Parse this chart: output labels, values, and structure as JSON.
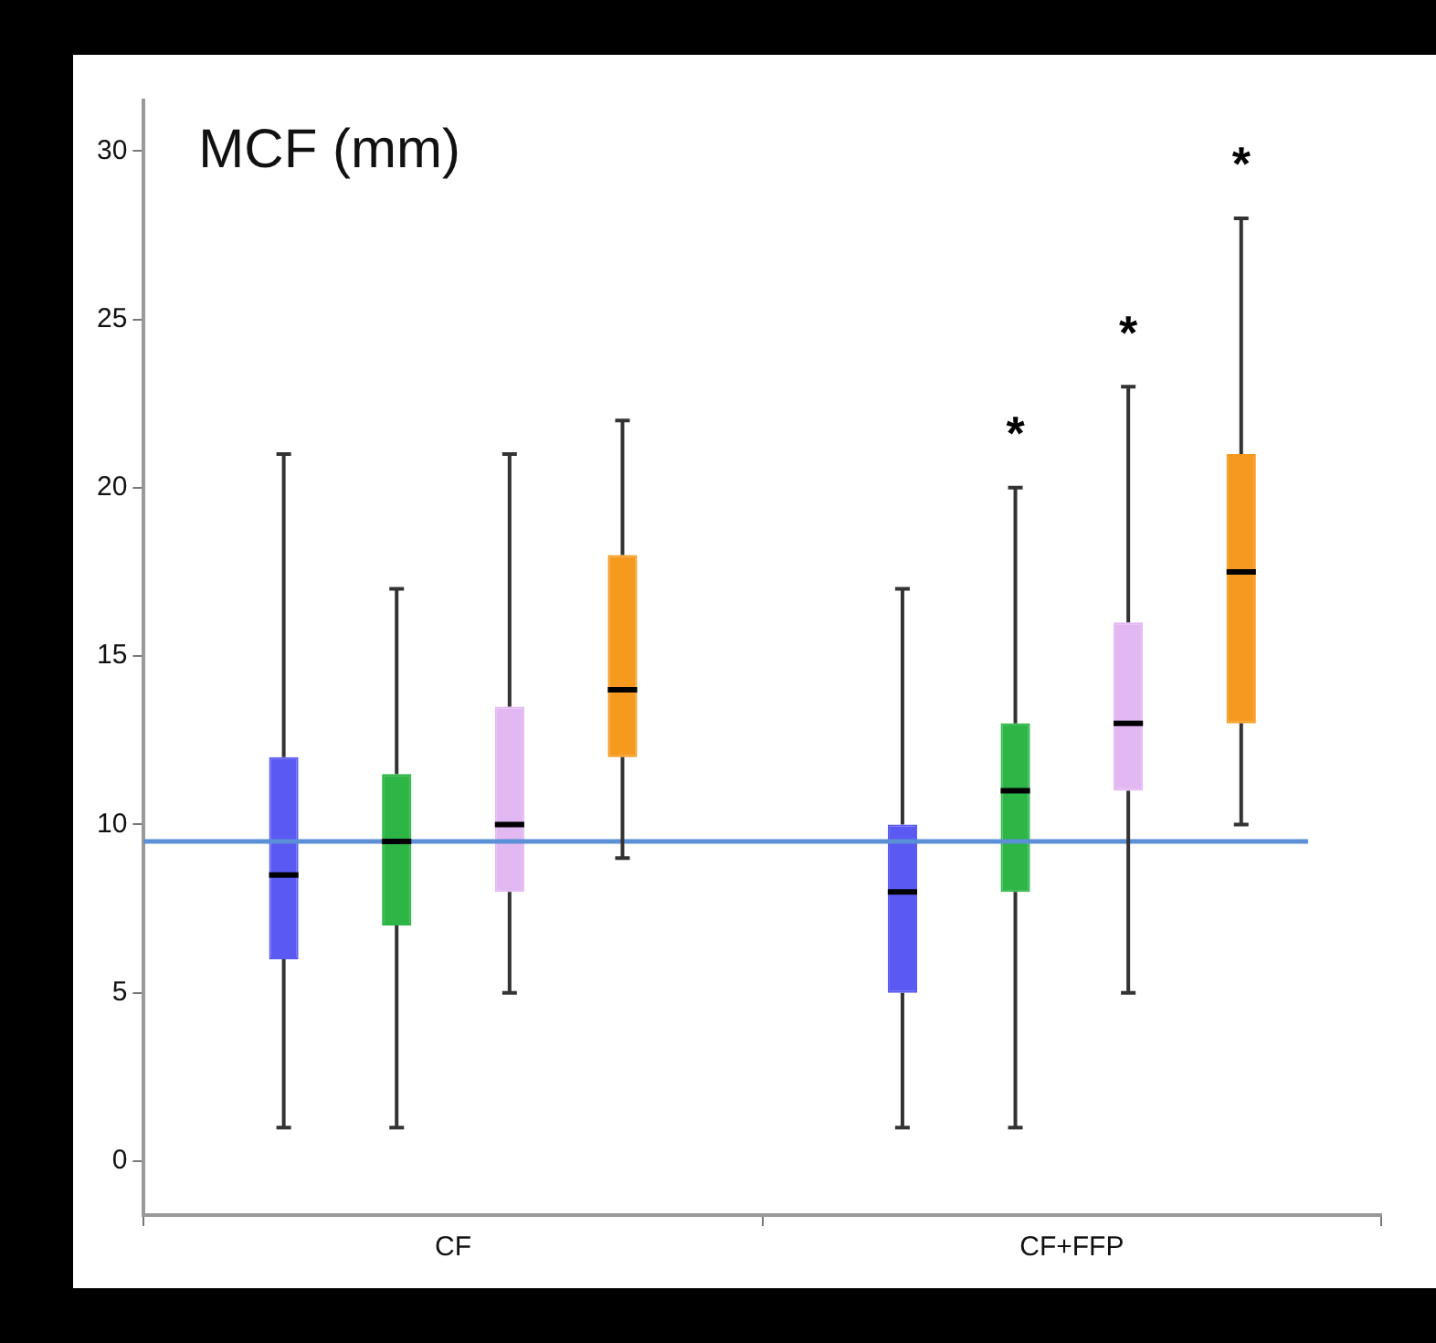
{
  "chart_data": {
    "type": "box",
    "title": "MCF (mm)",
    "categories": [
      "CF",
      "CF+FFP"
    ],
    "series": [
      {
        "color": "#5a5af2",
        "boxes": [
          {
            "low": 1,
            "q1": 6,
            "median": 8.5,
            "q3": 12,
            "high": 21
          },
          {
            "low": 1,
            "q1": 5,
            "median": 8,
            "q3": 10,
            "high": 17
          }
        ]
      },
      {
        "color": "#2db546",
        "boxes": [
          {
            "low": 1,
            "q1": 7,
            "median": 9.5,
            "q3": 11.5,
            "high": 17
          },
          {
            "low": 1,
            "q1": 8,
            "median": 11,
            "q3": 13,
            "high": 20
          }
        ]
      },
      {
        "color": "#e2b8f2",
        "boxes": [
          {
            "low": 5,
            "q1": 8,
            "median": 10,
            "q3": 13.5,
            "high": 21
          },
          {
            "low": 5,
            "q1": 11,
            "median": 13,
            "q3": 16,
            "high": 23
          }
        ]
      },
      {
        "color": "#f59a1e",
        "boxes": [
          {
            "low": 9,
            "q1": 12,
            "median": 14,
            "q3": 18,
            "high": 22
          },
          {
            "low": 10,
            "q1": 13,
            "median": 17.5,
            "q3": 21,
            "high": 28
          }
        ]
      }
    ],
    "ylim": [
      -1.6,
      31.5
    ],
    "yticks": [
      0,
      5,
      10,
      15,
      20,
      25,
      30
    ],
    "grid": false,
    "legend": false,
    "ref_lines": [
      {
        "axis": "y",
        "value": 9.5,
        "color": "#5b8fd6"
      }
    ],
    "annotations": [
      "*",
      "*",
      "*"
    ]
  }
}
